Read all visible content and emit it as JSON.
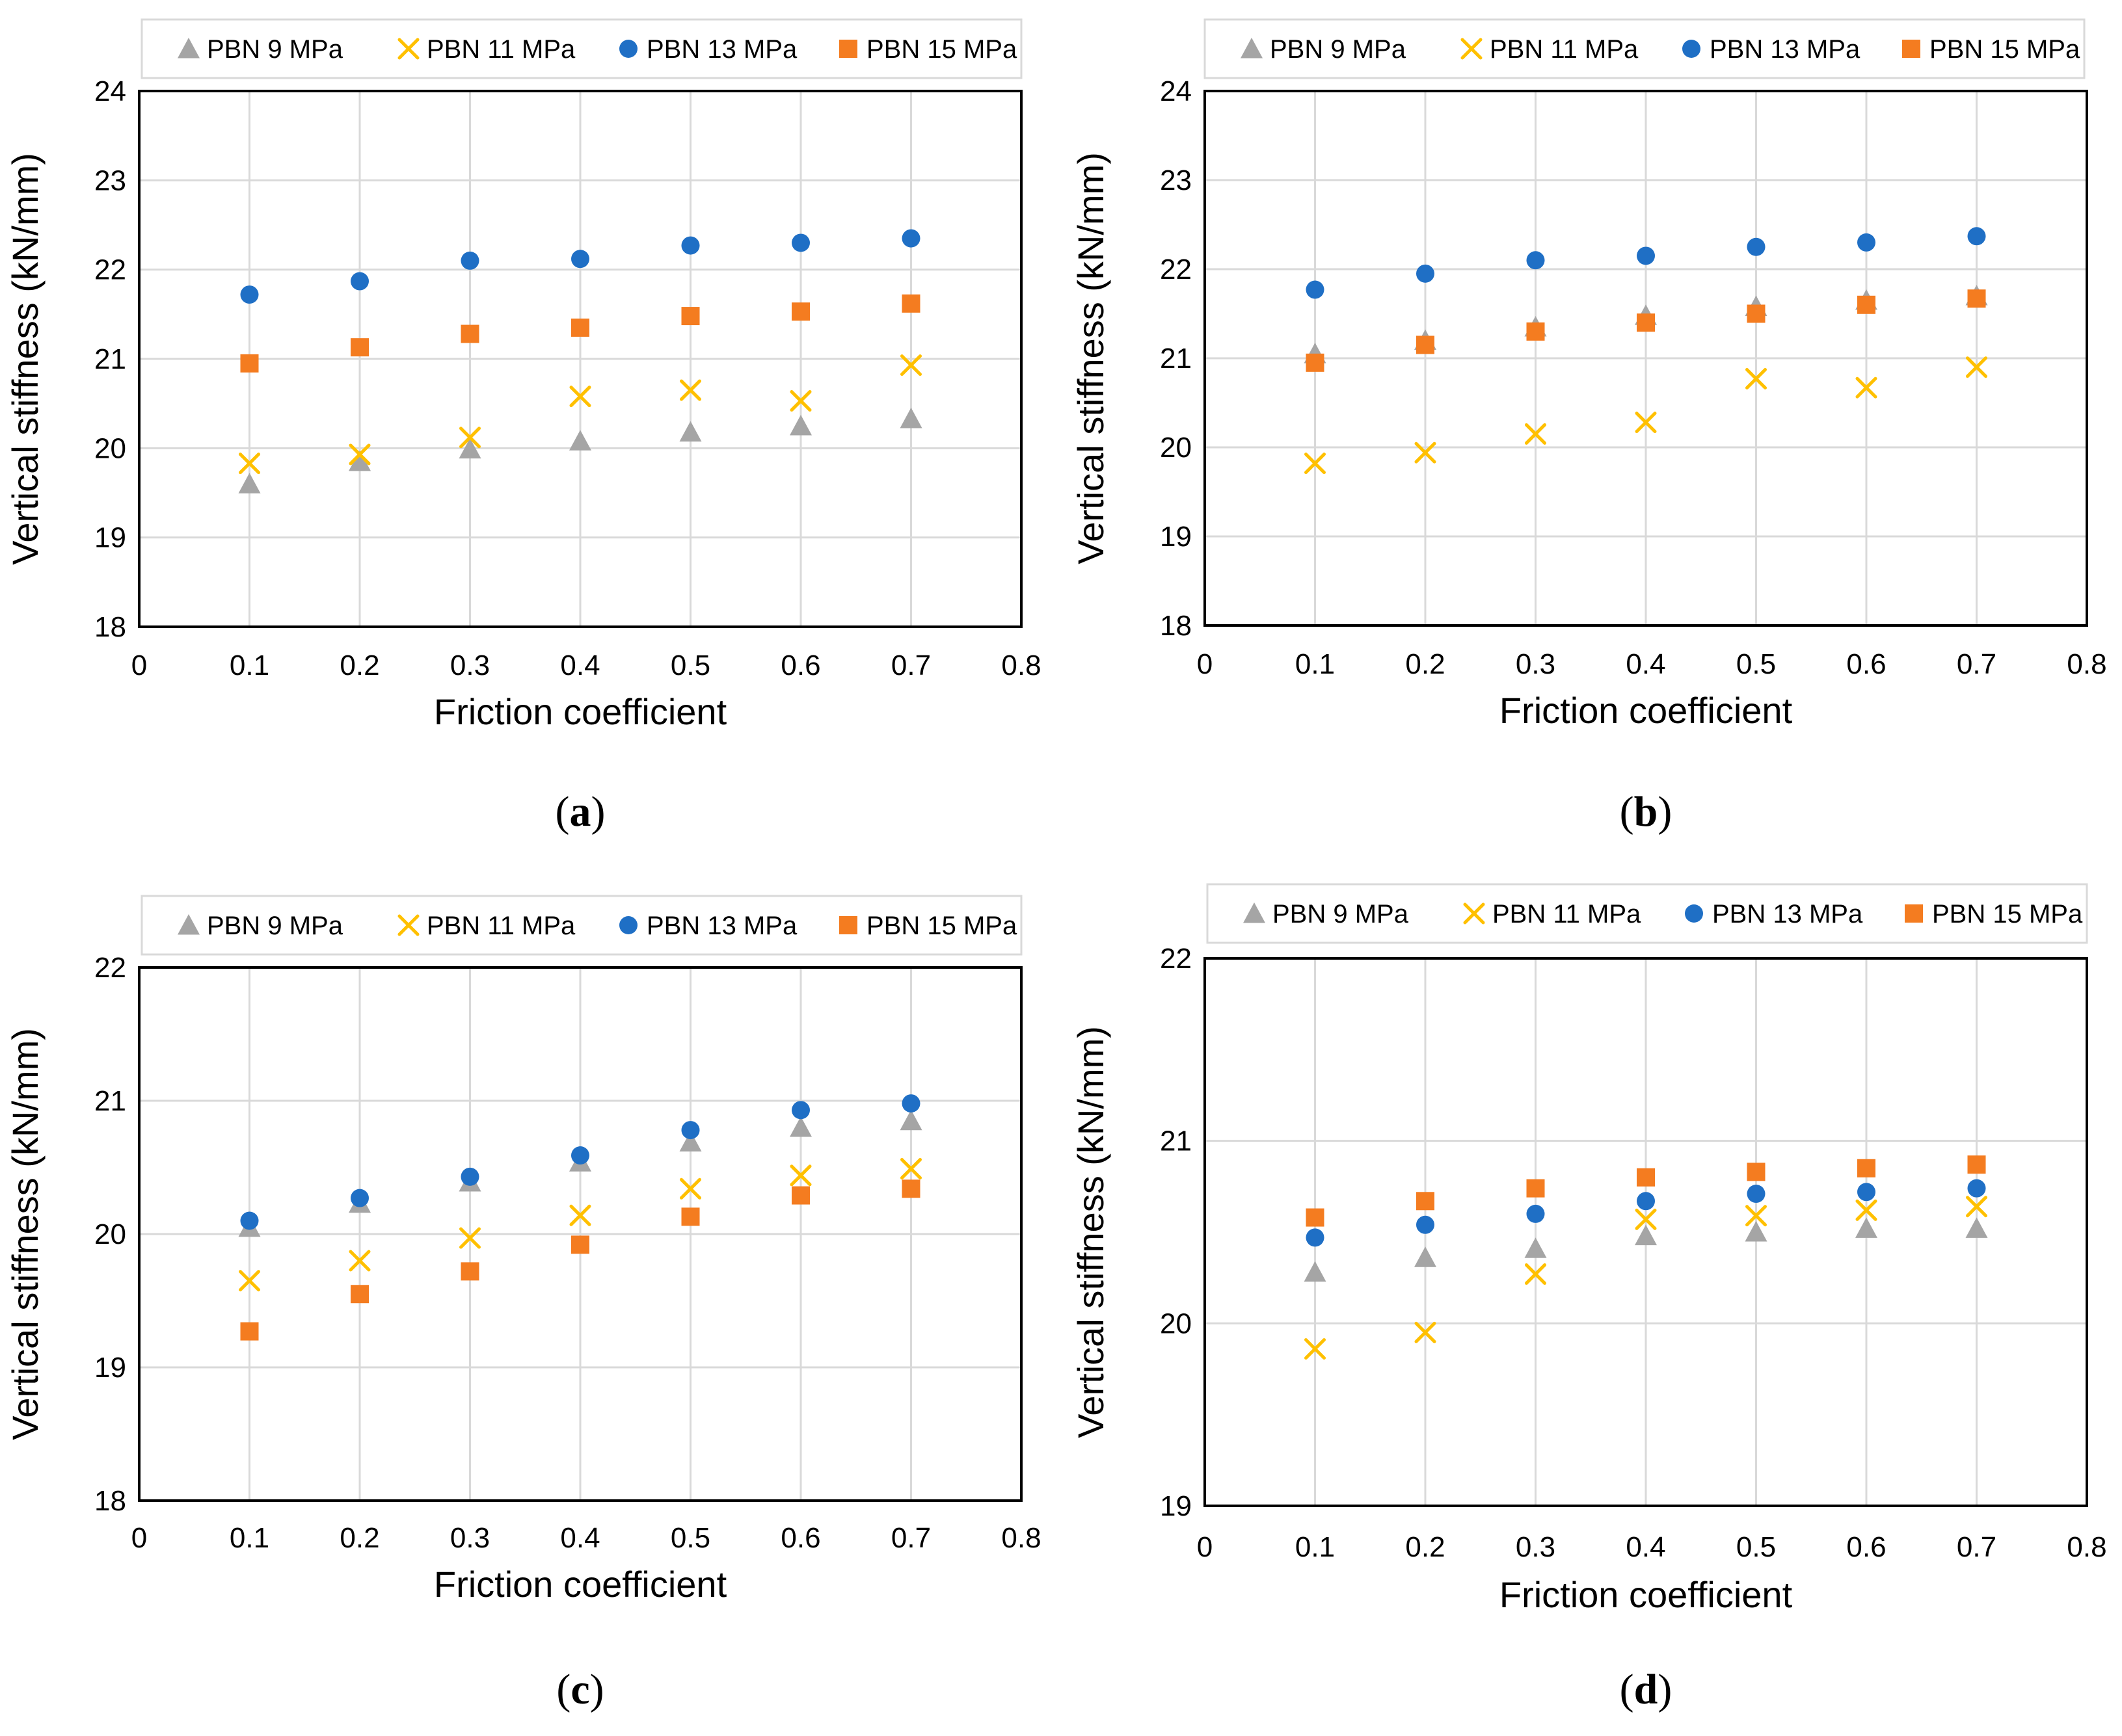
{
  "colors": {
    "PBN 9 MPa": "#a5a5a5",
    "PBN 11 MPa": "#ffc000",
    "PBN 13 MPa": "#1f6fc5",
    "PBN 15 MPa": "#f47c20"
  },
  "markers": {
    "PBN 9 MPa": "triangle",
    "PBN 11 MPa": "x",
    "PBN 13 MPa": "circle",
    "PBN 15 MPa": "square"
  },
  "chart_data": [
    {
      "type": "scatter",
      "panel": "a",
      "xlabel": "Friction coefficient",
      "ylabel": "Vertical stiffness (kN/mm)",
      "xlim": [
        0,
        0.8
      ],
      "ylim": [
        18,
        24
      ],
      "xticks": [
        "0",
        "0.1",
        "0.2",
        "0.3",
        "0.4",
        "0.5",
        "0.6",
        "0.7",
        "0.8"
      ],
      "yticks": [
        "18",
        "19",
        "20",
        "21",
        "22",
        "23",
        "24"
      ],
      "legend": "top",
      "x": [
        0.1,
        0.2,
        0.3,
        0.4,
        0.5,
        0.6,
        0.7
      ],
      "series": [
        {
          "name": "PBN 9 MPa",
          "values": [
            19.6,
            19.85,
            19.99,
            20.08,
            20.18,
            20.25,
            20.33
          ]
        },
        {
          "name": "PBN 11 MPa",
          "values": [
            19.83,
            19.93,
            20.12,
            20.58,
            20.65,
            20.53,
            20.93
          ]
        },
        {
          "name": "PBN 13 MPa",
          "values": [
            21.72,
            21.87,
            22.1,
            22.12,
            22.27,
            22.3,
            22.35
          ]
        },
        {
          "name": "PBN 15 MPa",
          "values": [
            20.95,
            21.13,
            21.28,
            21.35,
            21.48,
            21.53,
            21.62
          ]
        }
      ]
    },
    {
      "type": "scatter",
      "panel": "b",
      "xlabel": "Friction coefficient",
      "ylabel": "Vertical stiffness (kN/mm)",
      "xlim": [
        0,
        0.8
      ],
      "ylim": [
        18,
        24
      ],
      "xticks": [
        "0",
        "0.1",
        "0.2",
        "0.3",
        "0.4",
        "0.5",
        "0.6",
        "0.7",
        "0.8"
      ],
      "yticks": [
        "18",
        "19",
        "20",
        "21",
        "22",
        "23",
        "24"
      ],
      "legend": "top",
      "x": [
        0.1,
        0.2,
        0.3,
        0.4,
        0.5,
        0.6,
        0.7
      ],
      "series": [
        {
          "name": "PBN 9 MPa",
          "values": [
            21.05,
            21.2,
            21.35,
            21.48,
            21.58,
            21.65,
            21.7
          ]
        },
        {
          "name": "PBN 11 MPa",
          "values": [
            19.82,
            19.94,
            20.15,
            20.28,
            20.77,
            20.67,
            20.9
          ]
        },
        {
          "name": "PBN 13 MPa",
          "values": [
            21.77,
            21.95,
            22.1,
            22.15,
            22.25,
            22.3,
            22.37
          ]
        },
        {
          "name": "PBN 15 MPa",
          "values": [
            20.95,
            21.15,
            21.3,
            21.4,
            21.5,
            21.6,
            21.67
          ]
        }
      ]
    },
    {
      "type": "scatter",
      "panel": "c",
      "xlabel": "Friction coefficient",
      "ylabel": "Vertical stiffness (kN/mm)",
      "xlim": [
        0,
        0.8
      ],
      "ylim": [
        18,
        22
      ],
      "xticks": [
        "0",
        "0.1",
        "0.2",
        "0.3",
        "0.4",
        "0.5",
        "0.6",
        "0.7",
        "0.8"
      ],
      "yticks": [
        "18",
        "19",
        "20",
        "21",
        "22"
      ],
      "legend": "top",
      "x": [
        0.1,
        0.2,
        0.3,
        0.4,
        0.5,
        0.6,
        0.7
      ],
      "series": [
        {
          "name": "PBN 9 MPa",
          "values": [
            20.05,
            20.23,
            20.39,
            20.54,
            20.69,
            20.8,
            20.85
          ]
        },
        {
          "name": "PBN 11 MPa",
          "values": [
            19.65,
            19.8,
            19.97,
            20.14,
            20.34,
            20.44,
            20.49
          ]
        },
        {
          "name": "PBN 13 MPa",
          "values": [
            20.1,
            20.27,
            20.43,
            20.59,
            20.78,
            20.93,
            20.98
          ]
        },
        {
          "name": "PBN 15 MPa",
          "values": [
            19.27,
            19.55,
            19.72,
            19.92,
            20.13,
            20.29,
            20.34
          ]
        }
      ]
    },
    {
      "type": "scatter",
      "panel": "d",
      "xlabel": "Friction coefficient",
      "ylabel": "Vertical stiffness (kN/mm)",
      "xlim": [
        0,
        0.8
      ],
      "ylim": [
        19,
        22
      ],
      "xticks": [
        "0",
        "0.1",
        "0.2",
        "0.3",
        "0.4",
        "0.5",
        "0.6",
        "0.7",
        "0.8"
      ],
      "yticks": [
        "19",
        "20",
        "21",
        "22"
      ],
      "legend": "top",
      "x": [
        0.1,
        0.2,
        0.3,
        0.4,
        0.5,
        0.6,
        0.7
      ],
      "series": [
        {
          "name": "PBN 9 MPa",
          "values": [
            20.28,
            20.36,
            20.41,
            20.48,
            20.5,
            20.52,
            20.52
          ]
        },
        {
          "name": "PBN 11 MPa",
          "values": [
            19.86,
            19.95,
            20.27,
            20.57,
            20.59,
            20.62,
            20.64
          ]
        },
        {
          "name": "PBN 13 MPa",
          "values": [
            20.47,
            20.54,
            20.6,
            20.67,
            20.71,
            20.72,
            20.74
          ]
        },
        {
          "name": "PBN 15 MPa",
          "values": [
            20.58,
            20.67,
            20.74,
            20.8,
            20.83,
            20.85,
            20.87
          ]
        }
      ]
    }
  ]
}
